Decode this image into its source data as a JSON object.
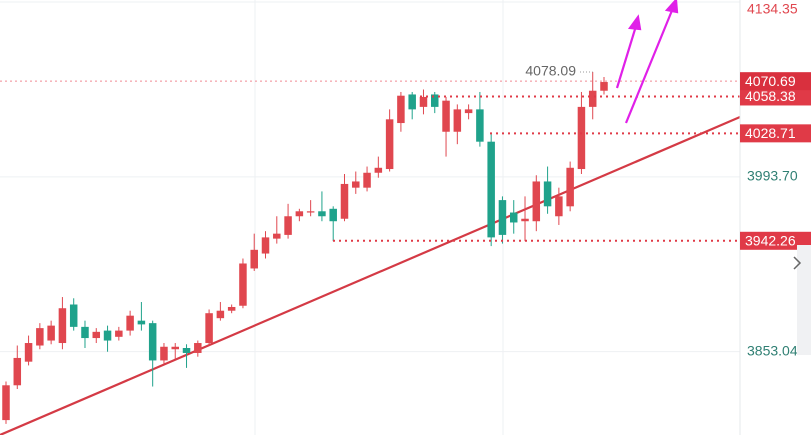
{
  "chart_data": {
    "type": "candlestick",
    "up_color": "#e0474f",
    "down_color": "#1fa28b",
    "ylim": [
      3786,
      4136
    ],
    "yticks": [
      4134.35,
      {
        "value": 3993.7,
        "label": "3993.70"
      },
      3853.04
    ],
    "grid": true,
    "open": [
      3798,
      3826,
      3845,
      3858,
      3862,
      3860,
      3891,
      3873,
      3864,
      3870,
      3865,
      3870,
      3878,
      3876,
      3846,
      3855,
      3856,
      3852,
      3860,
      3880,
      3886,
      3890,
      3920,
      3932,
      3944,
      3947,
      3962,
      3965,
      3966,
      3968,
      3960,
      3985,
      3985,
      3997,
      4000,
      4037,
      4060,
      4050,
      4060,
      4030,
      4030,
      4045,
      4048,
      4022,
      3975,
      3965,
      3958,
      3958,
      3990,
      3962,
      3970,
      4000,
      4050,
      4063
    ],
    "high": [
      3829,
      3858,
      3866,
      3876,
      3878,
      3897,
      3896,
      3878,
      3872,
      3874,
      3873,
      3886,
      3893,
      3878,
      3860,
      3860,
      3859,
      3862,
      3887,
      3893,
      3891,
      3928,
      3948,
      3950,
      3962,
      3972,
      3968,
      3975,
      3982,
      3970,
      3996,
      3998,
      4002,
      4010,
      4048,
      4062,
      4062,
      4064,
      4062,
      4058,
      4052,
      4052,
      4062,
      4028,
      3978,
      3975,
      3978,
      3995,
      4002,
      3985,
      4006,
      4062,
      4078.09,
      4074
    ],
    "low": [
      3795,
      3823,
      3842,
      3855,
      3859,
      3855,
      3870,
      3856,
      3860,
      3853,
      3862,
      3866,
      3870,
      3825,
      3843,
      3847,
      3840,
      3849,
      3858,
      3878,
      3884,
      3888,
      3918,
      3928,
      3940,
      3944,
      3958,
      3962,
      3958,
      3942,
      3958,
      3980,
      3982,
      3993,
      3998,
      4030,
      4040,
      4044,
      4045,
      4010,
      4020,
      4040,
      4018,
      3938,
      3940,
      3948,
      3942,
      3950,
      3964,
      3955,
      3966,
      3996,
      4040,
      4060
    ],
    "close": [
      3826,
      3848,
      3860,
      3872,
      3874,
      3888,
      3873,
      3864,
      3869,
      3862,
      3870,
      3882,
      3875,
      3846,
      3857,
      3857,
      3852,
      3860,
      3884,
      3886,
      3889,
      3924,
      3935,
      3945,
      3948,
      3962,
      3966,
      3966,
      3962,
      3958,
      3988,
      3990,
      3997,
      4001,
      4040,
      4059,
      4048,
      4058,
      4050,
      4055,
      4048,
      4048,
      4022,
      3945,
      3947,
      3957,
      3960,
      3990,
      3970,
      3978,
      4001,
      4050,
      4063,
      4070
    ],
    "high_label": 4078.09,
    "current_price": 4070.69,
    "price_lines": [
      4058.38,
      4028.71,
      3942.26
    ]
  }
}
